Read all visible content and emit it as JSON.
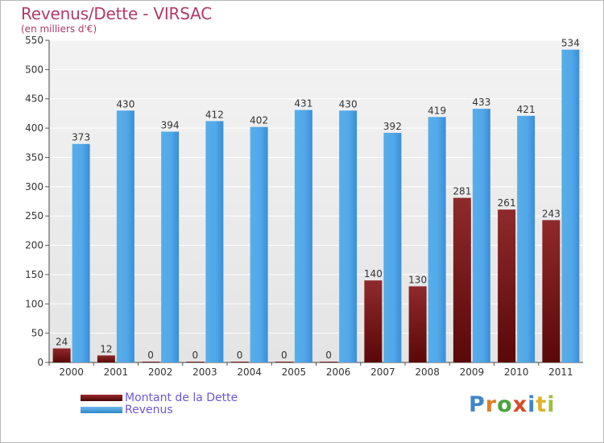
{
  "header": {
    "title": "Revenus/Dette - VIRSAC",
    "subtitle": "(en milliers d'€)"
  },
  "legend": [
    {
      "name": "Montant de la Dette",
      "color": "#6e1416"
    },
    {
      "name": "Revenus",
      "color": "#4aa3e6"
    }
  ],
  "logo": {
    "text": "Proxiti",
    "letter_colors": [
      "#3f86c9",
      "#e07d2a",
      "#4aa33c",
      "#d84a2a",
      "#3f86c9",
      "#e0b22a",
      "#9ac23c"
    ]
  },
  "chart_data": {
    "type": "bar",
    "title": "Revenus/Dette - VIRSAC",
    "subtitle": "(en milliers d'€)",
    "categories": [
      "2000",
      "2001",
      "2002",
      "2003",
      "2004",
      "2005",
      "2006",
      "2007",
      "2008",
      "2009",
      "2010",
      "2011"
    ],
    "series": [
      {
        "name": "Montant de la Dette",
        "color": "#7a1a1c",
        "values": [
          24,
          12,
          0,
          0,
          0,
          0,
          0,
          140,
          130,
          281,
          261,
          243
        ]
      },
      {
        "name": "Revenus",
        "color": "#4ea6e8",
        "values": [
          373,
          430,
          394,
          412,
          402,
          431,
          430,
          392,
          419,
          433,
          421,
          534
        ]
      }
    ],
    "ylim": [
      0,
      550
    ],
    "yticks": [
      0,
      50,
      100,
      150,
      200,
      250,
      300,
      350,
      400,
      450,
      500,
      550
    ],
    "grid": true,
    "legend_position": "bottom-left"
  }
}
